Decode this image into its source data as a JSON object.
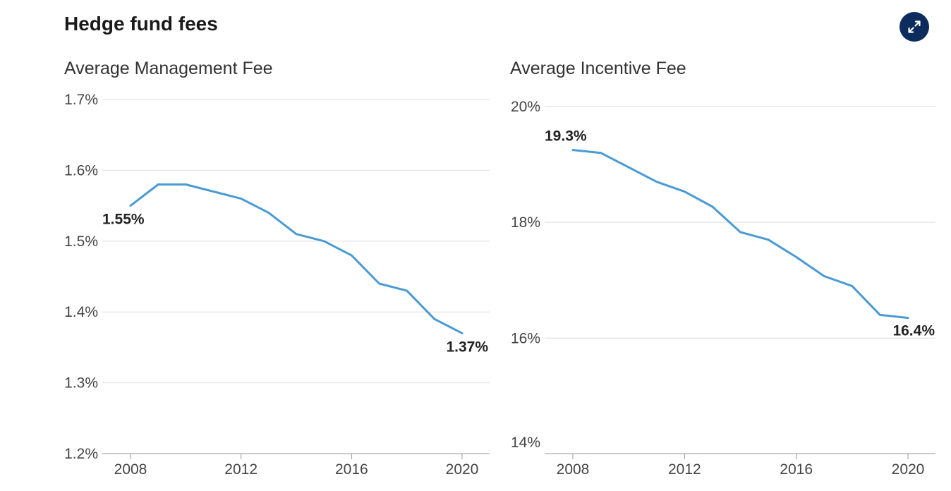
{
  "header": {
    "title": "Hedge fund fees",
    "expand_icon": "expand-icon"
  },
  "colors": {
    "line": "#4a9ad4",
    "grid": "#dddddd",
    "axis": "#999999",
    "button_bg": "#0b2c5c"
  },
  "chart_data": [
    {
      "type": "line",
      "title": "Average Management Fee",
      "xlabel": "",
      "ylabel": "",
      "x": [
        2008,
        2009,
        2010,
        2011,
        2012,
        2013,
        2014,
        2015,
        2016,
        2017,
        2018,
        2019,
        2020
      ],
      "series": [
        {
          "name": "Average Management Fee",
          "values": [
            1.55,
            1.58,
            1.58,
            1.57,
            1.56,
            1.54,
            1.51,
            1.5,
            1.48,
            1.44,
            1.43,
            1.39,
            1.37
          ]
        }
      ],
      "ylim": [
        1.2,
        1.7
      ],
      "yticks": [
        1.7,
        1.6,
        1.5,
        1.4,
        1.3,
        1.2
      ],
      "ytick_labels": [
        "1.7%",
        "1.6%",
        "1.5%",
        "1.4%",
        "1.3%",
        "1.2%"
      ],
      "xticks": [
        2008,
        2012,
        2016,
        2020
      ],
      "xtick_labels": [
        "2008",
        "2012",
        "2016",
        "2020"
      ],
      "annotations": [
        {
          "x": 2008,
          "y": 1.55,
          "text": "1.55%"
        },
        {
          "x": 2020,
          "y": 1.37,
          "text": "1.37%"
        }
      ]
    },
    {
      "type": "line",
      "title": "Average Incentive Fee",
      "xlabel": "",
      "ylabel": "",
      "x": [
        2008,
        2009,
        2010,
        2011,
        2012,
        2013,
        2014,
        2015,
        2016,
        2017,
        2018,
        2019,
        2020
      ],
      "series": [
        {
          "name": "Average Incentive Fee",
          "values": [
            19.25,
            19.2,
            18.95,
            18.7,
            18.53,
            18.27,
            17.83,
            17.7,
            17.4,
            17.07,
            16.9,
            16.4,
            16.35
          ]
        }
      ],
      "ylim": [
        14.2,
        20
      ],
      "yticks": [
        20,
        18,
        16,
        14
      ],
      "ytick_labels": [
        "20%",
        "18%",
        "16%",
        "14%"
      ],
      "xticks": [
        2008,
        2012,
        2016,
        2020
      ],
      "xtick_labels": [
        "2008",
        "2012",
        "2016",
        "2020"
      ],
      "annotations": [
        {
          "x": 2008,
          "y": 19.25,
          "text": "19.3%"
        },
        {
          "x": 2020,
          "y": 16.35,
          "text": "16.4%"
        }
      ]
    }
  ]
}
